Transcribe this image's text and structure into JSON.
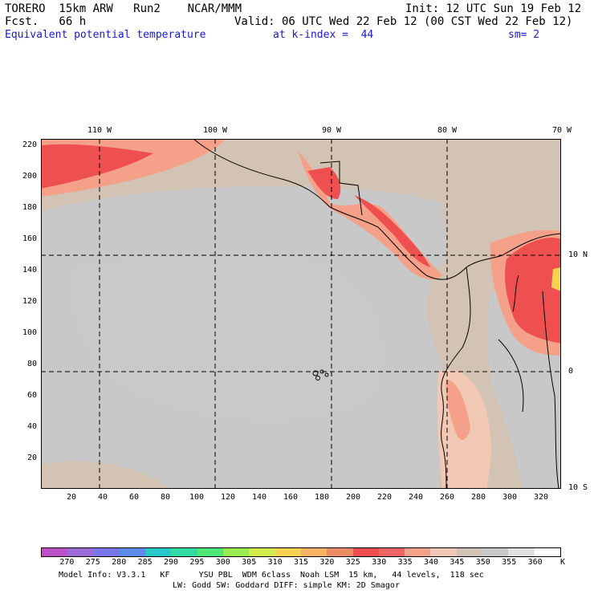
{
  "header": {
    "model": "TORERO  15km ARW   Run2    NCAR/MMM",
    "init": "Init: 12 UTC Sun 19 Feb 12",
    "fcst": "Fcst.   66 h",
    "valid": "Valid: 06 UTC Wed 22 Feb 12 (00 CST Wed 22 Feb 12)",
    "field": "Equivalent potential temperature",
    "level": "at k-index =  44",
    "smooth": "sm= 2"
  },
  "axes": {
    "x_ticks": [
      "20",
      "40",
      "60",
      "80",
      "100",
      "120",
      "140",
      "160",
      "180",
      "200",
      "220",
      "240",
      "260",
      "280",
      "300",
      "320"
    ],
    "y_ticks": [
      "220",
      "200",
      "180",
      "160",
      "140",
      "120",
      "100",
      "80",
      "60",
      "40",
      "20"
    ],
    "lon_labels": [
      "110 W",
      "100 W",
      "90 W",
      "80 W",
      "70 W"
    ],
    "lat_labels": [
      "10 N",
      "0",
      "10 S"
    ]
  },
  "colorbar": {
    "labels": [
      "270",
      "275",
      "280",
      "285",
      "290",
      "295",
      "300",
      "305",
      "310",
      "315",
      "320",
      "325",
      "330",
      "335",
      "340",
      "345",
      "350",
      "355",
      "360"
    ],
    "unit": "K",
    "colors": [
      "#c050c8",
      "#9b6bd6",
      "#7878ee",
      "#5a8cf0",
      "#28c8c8",
      "#32dca0",
      "#50e678",
      "#96ec50",
      "#d2ec50",
      "#f5d250",
      "#f5b464",
      "#f08c64",
      "#ee5050",
      "#f06464",
      "#f5a088",
      "#f0c8b4",
      "#d2c3b4",
      "#c8c8c8",
      "#e1e1e1",
      "#ffffff"
    ]
  },
  "footer": {
    "line1": "Model Info: V3.3.1   KF      YSU PBL  WDM 6class  Noah LSM  15 km,   44 levels,  118 sec",
    "line2": "LW: Godd SW: Goddard DIFF: simple KM: 2D Smagor"
  }
}
